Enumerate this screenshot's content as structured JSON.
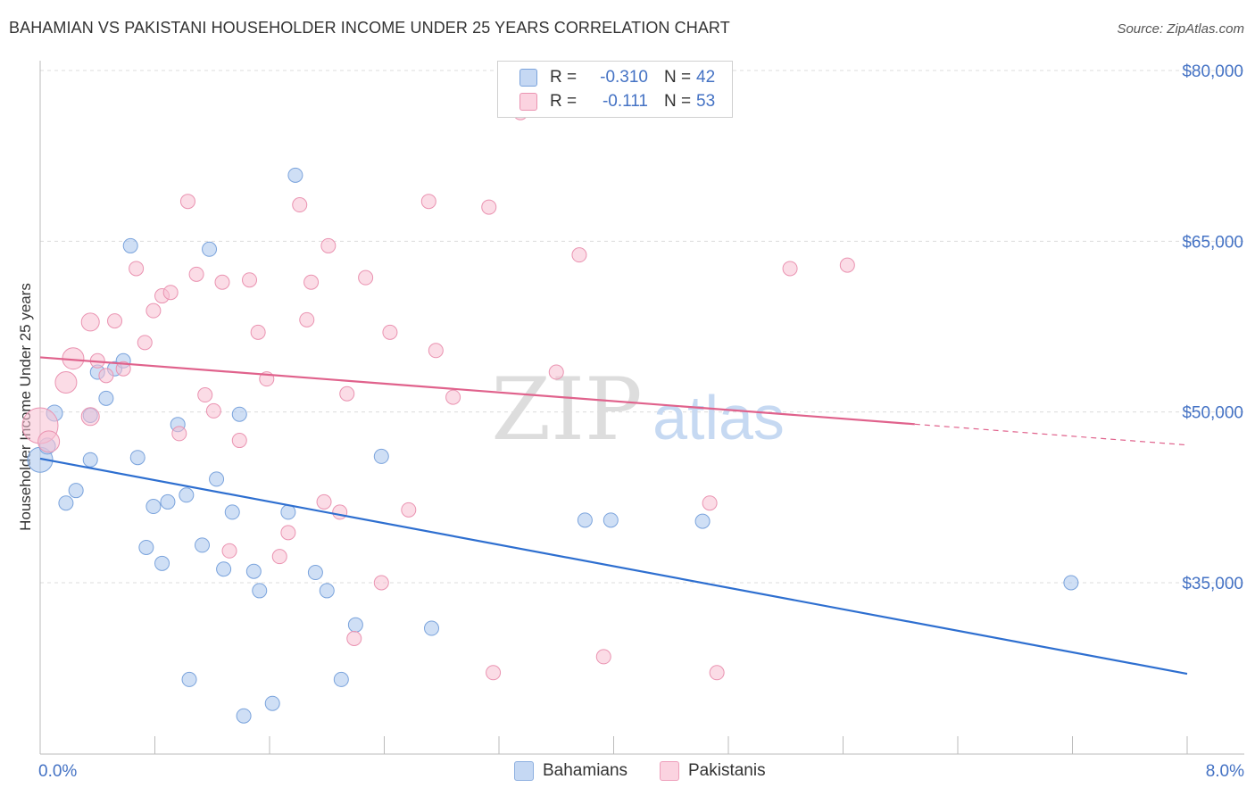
{
  "header": {
    "title": "BAHAMIAN VS PAKISTANI HOUSEHOLDER INCOME UNDER 25 YEARS CORRELATION CHART",
    "source": "Source: ZipAtlas.com"
  },
  "watermark": {
    "zip": "ZIP",
    "atlas": "atlas"
  },
  "legend": {
    "rows": [
      {
        "r_label": "R =",
        "r_value": "-0.310",
        "n_label": "N =",
        "n_value": "42",
        "color": "#a8c4ec",
        "border": "#7aa3dc"
      },
      {
        "r_label": "R =",
        "r_value": "-0.111",
        "n_label": "N =",
        "n_value": "53",
        "color": "#f7c0d2",
        "border": "#ea93b1"
      }
    ]
  },
  "bottom_legend": [
    {
      "label": "Bahamians",
      "color": "#c5d8f3",
      "border": "#8eb0e0"
    },
    {
      "label": "Pakistanis",
      "color": "#fbd3e0",
      "border": "#ee9fbb"
    }
  ],
  "chart_data": {
    "type": "scatter",
    "title": "BAHAMIAN VS PAKISTANI HOUSEHOLDER INCOME UNDER 25 YEARS CORRELATION CHART",
    "xlabel": "",
    "ylabel": "Householder Income Under 25 years",
    "xlim": [
      0,
      8.0
    ],
    "ylim": [
      20000,
      82000
    ],
    "x_tick_labels": [
      "0.0%",
      "8.0%"
    ],
    "y_ticks": [
      35000,
      50000,
      65000,
      80000
    ],
    "y_tick_labels": [
      "$35,000",
      "$50,000",
      "$65,000",
      "$80,000"
    ],
    "grid": true,
    "series": [
      {
        "name": "Bahamians",
        "color": "#a8c4ec",
        "stroke": "#7aa3dc",
        "trend_color": "#2e6fd0",
        "trend": {
          "x0": 0.0,
          "y0": 45900,
          "x1": 8.0,
          "y1": 27000,
          "solid_until": 8.0
        },
        "points": [
          [
            0.0,
            45800,
            14
          ],
          [
            0.05,
            47000,
            9
          ],
          [
            0.1,
            49900,
            9
          ],
          [
            0.18,
            42000,
            8
          ],
          [
            0.25,
            43100,
            8
          ],
          [
            0.35,
            49700,
            8
          ],
          [
            0.35,
            45800,
            8
          ],
          [
            0.4,
            53500,
            8
          ],
          [
            0.46,
            51200,
            8
          ],
          [
            0.52,
            53800,
            8
          ],
          [
            0.58,
            54500,
            8
          ],
          [
            0.63,
            64600,
            8
          ],
          [
            0.68,
            46000,
            8
          ],
          [
            0.74,
            38100,
            8
          ],
          [
            0.79,
            41700,
            8
          ],
          [
            0.85,
            36700,
            8
          ],
          [
            0.89,
            42100,
            8
          ],
          [
            0.96,
            48900,
            8
          ],
          [
            1.02,
            42700,
            8
          ],
          [
            1.04,
            26500,
            8
          ],
          [
            1.13,
            38300,
            8
          ],
          [
            1.18,
            64300,
            8
          ],
          [
            1.23,
            44100,
            8
          ],
          [
            1.28,
            36200,
            8
          ],
          [
            1.34,
            41200,
            8
          ],
          [
            1.39,
            49800,
            8
          ],
          [
            1.42,
            23300,
            8
          ],
          [
            1.49,
            36000,
            8
          ],
          [
            1.53,
            34300,
            8
          ],
          [
            1.62,
            24400,
            8
          ],
          [
            1.73,
            41200,
            8
          ],
          [
            1.78,
            70800,
            8
          ],
          [
            1.92,
            35900,
            8
          ],
          [
            2.0,
            34300,
            8
          ],
          [
            2.1,
            26500,
            8
          ],
          [
            2.2,
            31300,
            8
          ],
          [
            2.38,
            46100,
            8
          ],
          [
            2.73,
            31000,
            8
          ],
          [
            3.8,
            40500,
            8
          ],
          [
            3.98,
            40500,
            8
          ],
          [
            4.62,
            40400,
            8
          ],
          [
            7.19,
            35000,
            8
          ]
        ]
      },
      {
        "name": "Pakistanis",
        "color": "#f7c0d2",
        "stroke": "#ea93b1",
        "trend_color": "#e0628c",
        "trend": {
          "x0": 0.0,
          "y0": 54800,
          "x1": 8.0,
          "y1": 47100,
          "solid_until": 6.1
        },
        "points": [
          [
            0.0,
            48800,
            20
          ],
          [
            0.06,
            47400,
            12
          ],
          [
            0.18,
            52600,
            12
          ],
          [
            0.23,
            54700,
            12
          ],
          [
            0.35,
            57900,
            10
          ],
          [
            0.35,
            49600,
            10
          ],
          [
            0.4,
            54500,
            8
          ],
          [
            0.46,
            53200,
            8
          ],
          [
            0.52,
            58000,
            8
          ],
          [
            0.58,
            53800,
            8
          ],
          [
            0.67,
            62600,
            8
          ],
          [
            0.73,
            56100,
            8
          ],
          [
            0.79,
            58900,
            8
          ],
          [
            0.85,
            60200,
            8
          ],
          [
            0.91,
            60500,
            8
          ],
          [
            0.97,
            48100,
            8
          ],
          [
            1.03,
            68500,
            8
          ],
          [
            1.09,
            62100,
            8
          ],
          [
            1.15,
            51500,
            8
          ],
          [
            1.21,
            50100,
            8
          ],
          [
            1.27,
            61400,
            8
          ],
          [
            1.32,
            37800,
            8
          ],
          [
            1.39,
            47500,
            8
          ],
          [
            1.46,
            61600,
            8
          ],
          [
            1.52,
            57000,
            8
          ],
          [
            1.58,
            52900,
            8
          ],
          [
            1.67,
            37300,
            8
          ],
          [
            1.73,
            39400,
            8
          ],
          [
            1.81,
            68200,
            8
          ],
          [
            1.86,
            58100,
            8
          ],
          [
            1.89,
            61400,
            8
          ],
          [
            1.98,
            42100,
            8
          ],
          [
            2.01,
            64600,
            8
          ],
          [
            2.09,
            41200,
            8
          ],
          [
            2.14,
            51600,
            8
          ],
          [
            2.19,
            30100,
            8
          ],
          [
            2.27,
            61800,
            8
          ],
          [
            2.38,
            35000,
            8
          ],
          [
            2.44,
            57000,
            8
          ],
          [
            2.57,
            41400,
            8
          ],
          [
            2.71,
            68500,
            8
          ],
          [
            2.76,
            55400,
            8
          ],
          [
            2.88,
            51300,
            8
          ],
          [
            3.16,
            27100,
            8
          ],
          [
            3.13,
            68000,
            8
          ],
          [
            3.35,
            76300,
            8
          ],
          [
            3.6,
            53500,
            8
          ],
          [
            3.76,
            63800,
            8
          ],
          [
            3.93,
            28500,
            8
          ],
          [
            4.67,
            42000,
            8
          ],
          [
            4.72,
            27100,
            8
          ],
          [
            5.23,
            62600,
            8
          ],
          [
            5.63,
            62900,
            8
          ]
        ]
      }
    ]
  }
}
